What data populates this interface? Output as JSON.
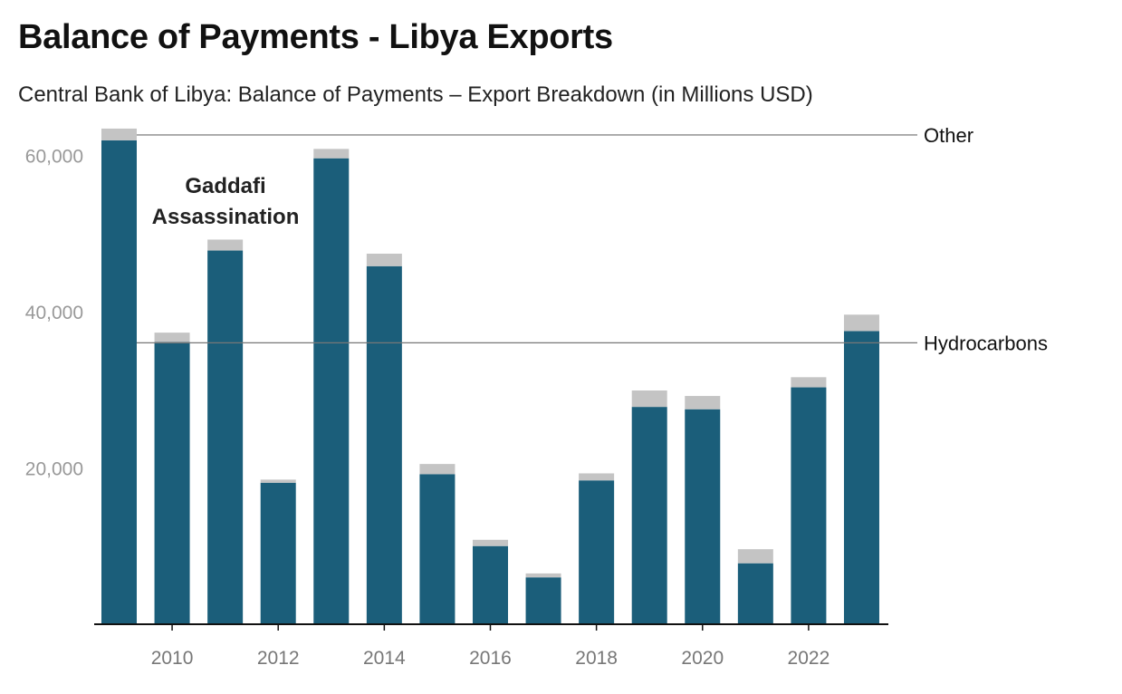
{
  "title": "Balance of Payments - Libya Exports",
  "subtitle": "Central Bank of Libya: Balance of Payments – Export Breakdown (in Millions USD)",
  "chart_data": {
    "type": "bar",
    "stacked": true,
    "categories": [
      "2009",
      "2010",
      "2011",
      "2012",
      "2013",
      "2014",
      "2015",
      "2016",
      "2017",
      "2018",
      "2019",
      "2020",
      "2021",
      "2022",
      "2023"
    ],
    "x_tick_labels": [
      "2010",
      "2012",
      "2014",
      "2016",
      "2018",
      "2020",
      "2022"
    ],
    "y_tick_labels": [
      "20,000",
      "40,000",
      "60,000"
    ],
    "y_ticks": [
      20000,
      40000,
      60000
    ],
    "ylim": [
      0,
      63500
    ],
    "grid": false,
    "series": [
      {
        "name": "Hydrocarbons",
        "color": "#1b5e7a",
        "values": [
          61900,
          36100,
          47800,
          18100,
          59600,
          45800,
          19200,
          10000,
          6000,
          18400,
          27800,
          27500,
          7800,
          30300,
          37500
        ]
      },
      {
        "name": "Other",
        "color": "#c4c4c4",
        "values": [
          1500,
          1200,
          1400,
          400,
          1200,
          1600,
          1300,
          800,
          500,
          900,
          2100,
          1700,
          1800,
          1300,
          2100
        ]
      }
    ],
    "legend_position": "right, inline at series level",
    "annotations": [
      {
        "lines": [
          "Gaddafi",
          "Assassination"
        ]
      }
    ]
  }
}
